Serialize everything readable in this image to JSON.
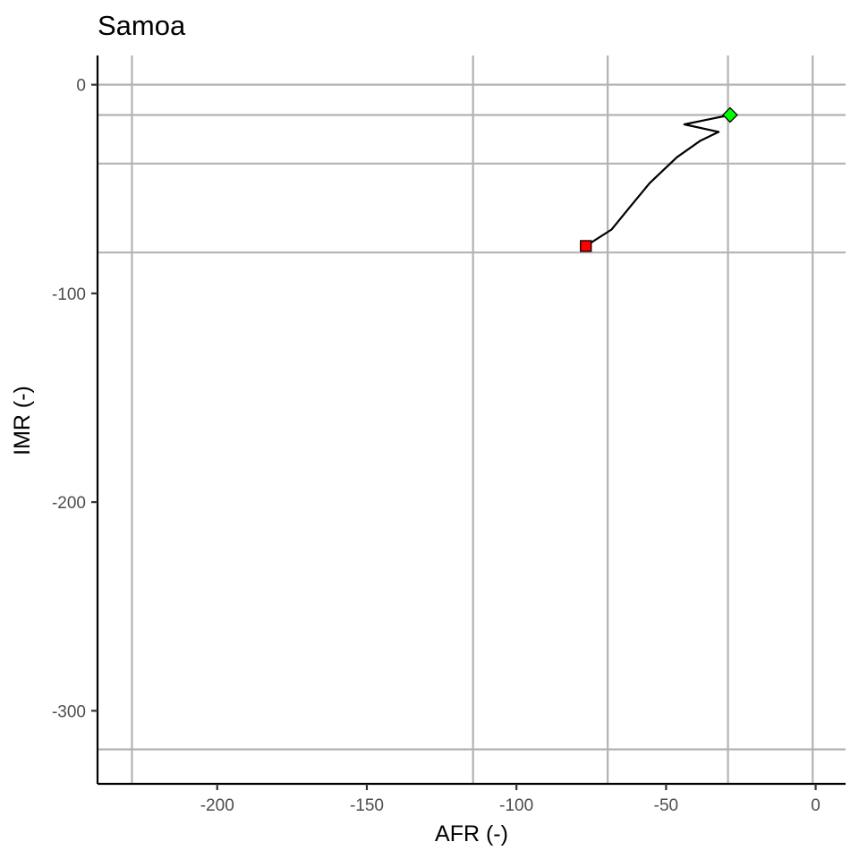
{
  "chart_data": {
    "type": "line",
    "title": "Samoa",
    "xlabel": "AFR (-)",
    "ylabel": "IMR (-)",
    "xlim": [
      -240,
      10
    ],
    "ylim": [
      -335,
      14
    ],
    "xticks": [
      -200,
      -150,
      -100,
      -50,
      0
    ],
    "yticks": [
      0,
      -100,
      -200,
      -300
    ],
    "xtick_labels": [
      "-200",
      "-150",
      "-100",
      "-50",
      "0"
    ],
    "ytick_labels": [
      "0",
      "-100",
      "-200",
      "-300"
    ],
    "grid": true,
    "reference_lines": {
      "vertical": [
        -228.5,
        -114.5,
        -69.5,
        -29.3,
        -1.0
      ],
      "horizontal": [
        -14.5,
        -37.8,
        -80.4,
        -318.5
      ]
    },
    "series": [
      {
        "x": [
          -76.8,
          -68.2,
          -62.4,
          -55.5,
          -46.4,
          -38.5,
          -32.4,
          -43.9,
          -36.0,
          -28.6
        ],
        "y": [
          -77.3,
          -69.4,
          -59.2,
          -47.2,
          -34.8,
          -26.8,
          -22.6,
          -19.0,
          -16.7,
          -14.5
        ],
        "color": "#000000"
      }
    ],
    "markers": {
      "start": {
        "x": -76.8,
        "y": -77.3,
        "shape": "square",
        "color": "#ff0000"
      },
      "end": {
        "x": -28.6,
        "y": -14.5,
        "shape": "diamond",
        "color": "#00ff00"
      }
    },
    "grid_color": "#b3b3b3",
    "axis_color": "#000000"
  }
}
